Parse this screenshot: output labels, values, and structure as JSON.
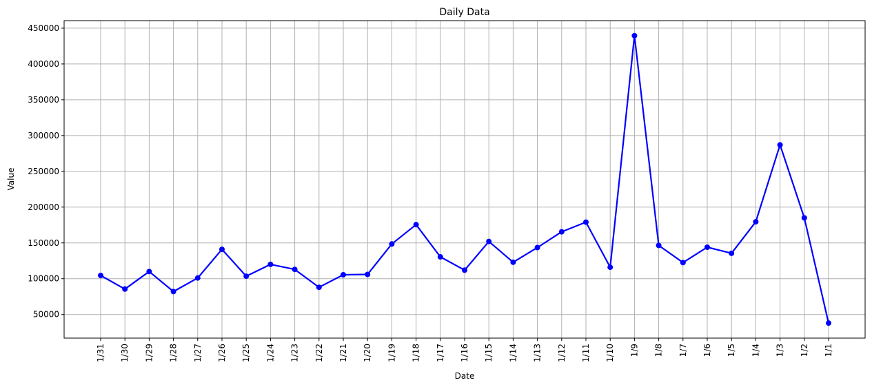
{
  "chart_data": {
    "type": "line",
    "title": "Daily Data",
    "xlabel": "Date",
    "ylabel": "Value",
    "categories": [
      "1/31",
      "1/30",
      "1/29",
      "1/28",
      "1/27",
      "1/26",
      "1/25",
      "1/24",
      "1/23",
      "1/22",
      "1/21",
      "1/20",
      "1/19",
      "1/18",
      "1/17",
      "1/16",
      "1/15",
      "1/14",
      "1/13",
      "1/12",
      "1/11",
      "1/10",
      "1/9",
      "1/8",
      "1/7",
      "1/6",
      "1/5",
      "1/4",
      "1/3",
      "1/2",
      "1/1"
    ],
    "series": [
      {
        "values": [
          104500,
          85500,
          110000,
          82000,
          101000,
          141000,
          103500,
          120000,
          113000,
          88000,
          105500,
          106000,
          148500,
          175500,
          130500,
          112000,
          152000,
          123000,
          143500,
          165500,
          179000,
          116000,
          439500,
          146500,
          122500,
          144000,
          135500,
          179500,
          287000,
          185000,
          38000
        ],
        "color": "#0000ff",
        "marker": "circle"
      }
    ],
    "yticks": [
      50000,
      100000,
      150000,
      200000,
      250000,
      300000,
      350000,
      400000,
      450000
    ],
    "ylim": [
      17000,
      460500
    ],
    "grid": true,
    "legend": null
  }
}
